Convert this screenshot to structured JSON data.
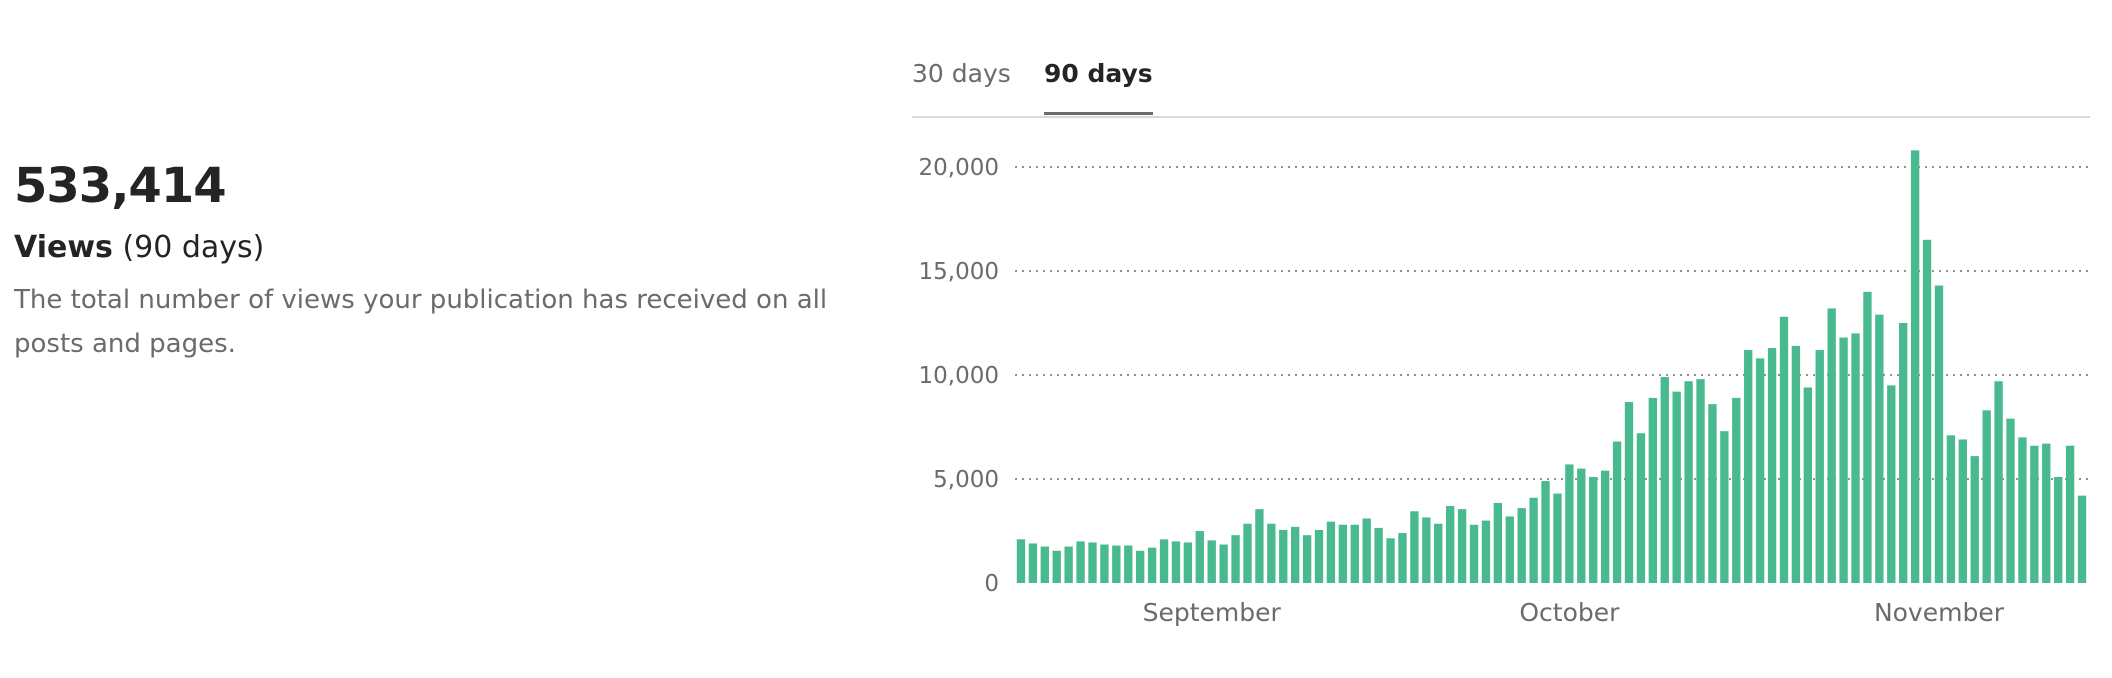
{
  "summary": {
    "total": "533,414",
    "metric": "Views",
    "period": "(90 days)",
    "description": "The total number of views your publication has received on all posts and pages."
  },
  "tabs": [
    {
      "label": "30 days",
      "selected": false
    },
    {
      "label": "90 days",
      "selected": true
    }
  ],
  "colors": {
    "bar": "#49b98f",
    "grid": "#6b6b6b",
    "text": "#6b6b6b"
  },
  "chart_data": {
    "type": "bar",
    "title": "",
    "xlabel": "",
    "ylabel": "",
    "ylim": [
      0,
      20000
    ],
    "yticks": [
      0,
      5000,
      10000,
      15000,
      20000
    ],
    "ytick_labels": [
      "0",
      "5,000",
      "10,000",
      "15,000",
      "20,000"
    ],
    "grid": true,
    "x_range": [
      "2023-08-16",
      "2023-11-13"
    ],
    "x_tick_labels": [
      {
        "label": "September",
        "date": "2023-09-01"
      },
      {
        "label": "October",
        "date": "2023-10-01"
      },
      {
        "label": "November",
        "date": "2023-11-01"
      }
    ],
    "values": [
      2100,
      1900,
      1750,
      1550,
      1750,
      2000,
      1950,
      1850,
      1800,
      1800,
      1550,
      1700,
      2100,
      2000,
      1950,
      2500,
      2050,
      1850,
      2300,
      2850,
      3550,
      2850,
      2550,
      2700,
      2300,
      2550,
      2950,
      2800,
      2800,
      3100,
      2650,
      2150,
      2400,
      3450,
      3150,
      2850,
      3700,
      3550,
      2800,
      3000,
      3850,
      3200,
      3600,
      4100,
      4900,
      4300,
      5700,
      5500,
      5100,
      5400,
      6800,
      8700,
      7200,
      8900,
      9900,
      9200,
      9700,
      9800,
      8600,
      7300,
      8900,
      11200,
      10800,
      11300,
      12800,
      11400,
      9400,
      11200,
      13200,
      11800,
      12000,
      14000,
      12900,
      9500,
      12500,
      20800,
      16500,
      14300,
      7100,
      6900,
      6100,
      8300,
      9700,
      7900,
      7000,
      6600,
      6700,
      5100,
      6600,
      4200
    ]
  }
}
